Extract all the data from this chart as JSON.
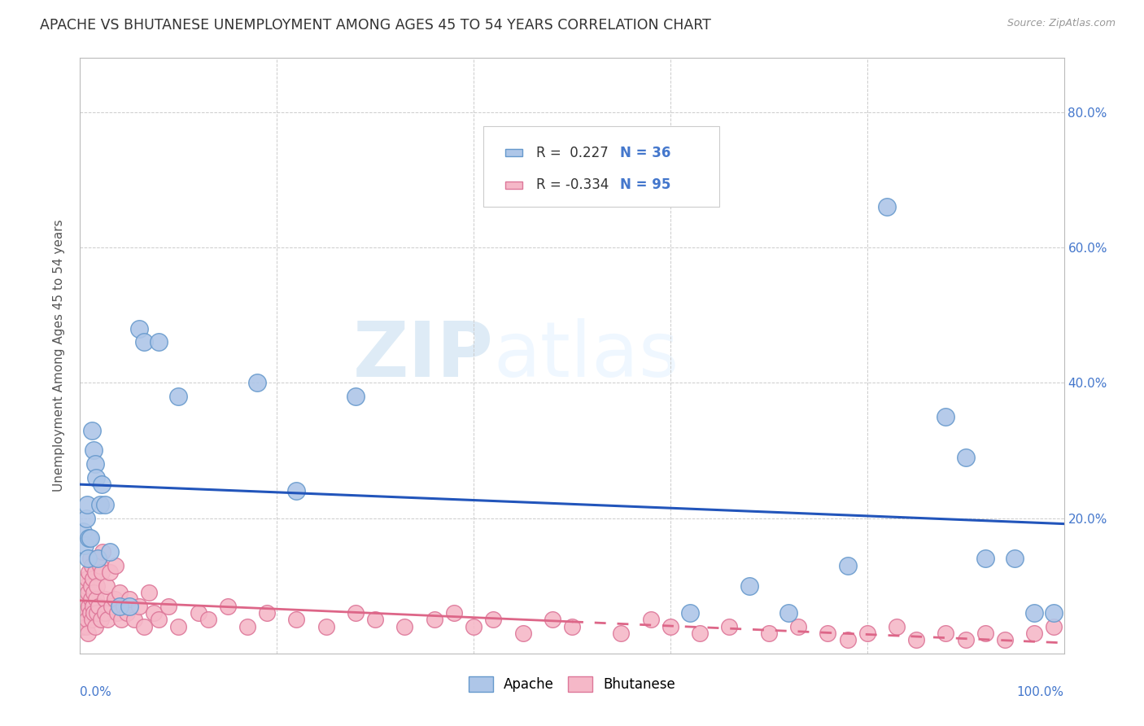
{
  "title": "APACHE VS BHUTANESE UNEMPLOYMENT AMONG AGES 45 TO 54 YEARS CORRELATION CHART",
  "source": "Source: ZipAtlas.com",
  "ylabel": "Unemployment Among Ages 45 to 54 years",
  "xlim": [
    0.0,
    1.0
  ],
  "ylim": [
    0.0,
    0.88
  ],
  "xticks": [
    0.0,
    0.2,
    0.4,
    0.6,
    0.8,
    1.0
  ],
  "xticklabels": [
    "0.0%",
    "",
    "",
    "",
    "",
    "100.0%"
  ],
  "yticks": [
    0.0,
    0.2,
    0.4,
    0.6,
    0.8
  ],
  "yticklabels": [
    "",
    "20.0%",
    "40.0%",
    "60.0%",
    "80.0%"
  ],
  "apache_color": "#aec6e8",
  "apache_edge_color": "#6699cc",
  "bhutanese_color": "#f5b8c8",
  "bhutanese_edge_color": "#dd7799",
  "trendline_apache_color": "#2255bb",
  "trendline_bhutanese_color": "#dd6688",
  "background_color": "#ffffff",
  "grid_color": "#cccccc",
  "tick_color": "#4477cc",
  "title_fontsize": 12.5,
  "axis_label_fontsize": 11,
  "tick_fontsize": 11,
  "watermark_zip": "ZIP",
  "watermark_atlas": "atlas",
  "apache_R": "0.227",
  "apache_N": "36",
  "bhutanese_R": "-0.334",
  "bhutanese_N": "95",
  "apache_points_x": [
    0.003,
    0.005,
    0.006,
    0.007,
    0.008,
    0.009,
    0.01,
    0.012,
    0.014,
    0.015,
    0.016,
    0.018,
    0.02,
    0.022,
    0.025,
    0.03,
    0.04,
    0.05,
    0.06,
    0.065,
    0.08,
    0.1,
    0.18,
    0.22,
    0.28,
    0.62,
    0.68,
    0.72,
    0.78,
    0.82,
    0.88,
    0.9,
    0.92,
    0.95,
    0.97,
    0.99
  ],
  "apache_points_y": [
    0.18,
    0.16,
    0.2,
    0.22,
    0.14,
    0.17,
    0.17,
    0.33,
    0.3,
    0.28,
    0.26,
    0.14,
    0.22,
    0.25,
    0.22,
    0.15,
    0.07,
    0.07,
    0.48,
    0.46,
    0.46,
    0.38,
    0.4,
    0.24,
    0.38,
    0.06,
    0.1,
    0.06,
    0.13,
    0.66,
    0.35,
    0.29,
    0.14,
    0.14,
    0.06,
    0.06
  ],
  "bhutanese_points_x": [
    0.001,
    0.002,
    0.003,
    0.003,
    0.004,
    0.004,
    0.005,
    0.005,
    0.006,
    0.006,
    0.007,
    0.007,
    0.008,
    0.008,
    0.009,
    0.009,
    0.01,
    0.01,
    0.011,
    0.011,
    0.012,
    0.012,
    0.013,
    0.013,
    0.014,
    0.014,
    0.015,
    0.015,
    0.016,
    0.016,
    0.017,
    0.017,
    0.018,
    0.019,
    0.02,
    0.021,
    0.022,
    0.023,
    0.025,
    0.025,
    0.027,
    0.028,
    0.03,
    0.032,
    0.035,
    0.036,
    0.038,
    0.04,
    0.042,
    0.044,
    0.048,
    0.05,
    0.055,
    0.06,
    0.065,
    0.07,
    0.075,
    0.08,
    0.09,
    0.1,
    0.12,
    0.13,
    0.15,
    0.17,
    0.19,
    0.22,
    0.25,
    0.28,
    0.3,
    0.33,
    0.36,
    0.38,
    0.4,
    0.42,
    0.45,
    0.48,
    0.5,
    0.55,
    0.58,
    0.6,
    0.63,
    0.66,
    0.7,
    0.73,
    0.76,
    0.78,
    0.8,
    0.83,
    0.85,
    0.88,
    0.9,
    0.92,
    0.94,
    0.97,
    0.99
  ],
  "bhutanese_points_y": [
    0.04,
    0.05,
    0.06,
    0.04,
    0.07,
    0.05,
    0.08,
    0.06,
    0.1,
    0.04,
    0.11,
    0.05,
    0.09,
    0.03,
    0.12,
    0.07,
    0.14,
    0.06,
    0.08,
    0.1,
    0.13,
    0.05,
    0.11,
    0.07,
    0.06,
    0.09,
    0.12,
    0.04,
    0.14,
    0.08,
    0.06,
    0.1,
    0.14,
    0.07,
    0.13,
    0.05,
    0.12,
    0.15,
    0.08,
    0.06,
    0.1,
    0.05,
    0.12,
    0.07,
    0.08,
    0.13,
    0.06,
    0.09,
    0.05,
    0.07,
    0.06,
    0.08,
    0.05,
    0.07,
    0.04,
    0.09,
    0.06,
    0.05,
    0.07,
    0.04,
    0.06,
    0.05,
    0.07,
    0.04,
    0.06,
    0.05,
    0.04,
    0.06,
    0.05,
    0.04,
    0.05,
    0.06,
    0.04,
    0.05,
    0.03,
    0.05,
    0.04,
    0.03,
    0.05,
    0.04,
    0.03,
    0.04,
    0.03,
    0.04,
    0.03,
    0.02,
    0.03,
    0.04,
    0.02,
    0.03,
    0.02,
    0.03,
    0.02,
    0.03,
    0.04
  ]
}
